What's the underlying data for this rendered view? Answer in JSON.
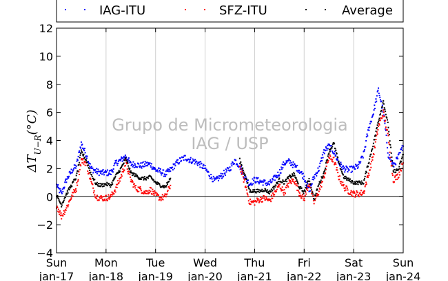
{
  "chart_data": {
    "type": "scatter",
    "ylabel": "ΔT",
    "ylabel_sub": "U−R",
    "ylabel_unit": "(°C)",
    "ylim": [
      -4,
      12
    ],
    "yticks": [
      -4,
      -2,
      0,
      2,
      4,
      6,
      8,
      10,
      12
    ],
    "ytick_labels": [
      "−4",
      "−2",
      "0",
      "2",
      "4",
      "6",
      "8",
      "10",
      "12"
    ],
    "xlim": [
      0,
      7
    ],
    "xticks": [
      0,
      1,
      2,
      3,
      4,
      5,
      6,
      7
    ],
    "xtick_labels_top": [
      "Sun",
      "Mon",
      "Tue",
      "Wed",
      "Thu",
      "Fri",
      "Sat",
      "Sun"
    ],
    "xtick_labels_bottom": [
      "jan-17",
      "jan-18",
      "jan-19",
      "jan-20",
      "jan-21",
      "jan-22",
      "jan-23",
      "jan-24"
    ],
    "grid_x": true,
    "zero_line": true,
    "legend_position": "top",
    "watermark": [
      "Grupo de Micrometeorologia",
      "IAG / USP"
    ],
    "series": [
      {
        "name": "IAG-ITU",
        "color": "#0000ff",
        "x": [
          0.0,
          0.1,
          0.2,
          0.3,
          0.4,
          0.5,
          0.6,
          0.7,
          0.8,
          0.9,
          1.0,
          1.1,
          1.2,
          1.3,
          1.4,
          1.5,
          1.6,
          1.7,
          1.8,
          1.9,
          2.0,
          2.1,
          2.2,
          2.3,
          2.4,
          2.5,
          2.6,
          2.7,
          2.8,
          2.9,
          3.0,
          3.1,
          3.2,
          3.3,
          3.4,
          3.5,
          3.6,
          3.7,
          3.8,
          3.9,
          4.0,
          4.1,
          4.2,
          4.3,
          4.4,
          4.5,
          4.6,
          4.7,
          4.8,
          4.9,
          5.0,
          5.1,
          5.2,
          5.3,
          5.4,
          5.5,
          5.6,
          5.7,
          5.8,
          5.9,
          6.0,
          6.1,
          6.2,
          6.3,
          6.4,
          6.5,
          6.6,
          6.7,
          6.8,
          6.9,
          7.0
        ],
        "y": [
          0.8,
          0.2,
          1.2,
          1.8,
          2.2,
          3.8,
          3.0,
          2.0,
          1.8,
          1.7,
          1.7,
          1.7,
          2.4,
          2.6,
          2.9,
          2.3,
          2.3,
          2.2,
          2.3,
          2.3,
          1.9,
          1.8,
          1.6,
          1.9,
          2.3,
          2.6,
          2.8,
          2.6,
          2.5,
          2.3,
          2.0,
          1.5,
          1.1,
          1.4,
          1.7,
          2.0,
          2.6,
          2.2,
          1.4,
          0.9,
          1.2,
          1.1,
          1.0,
          0.9,
          1.3,
          1.7,
          2.4,
          2.5,
          2.2,
          1.9,
          1.4,
          0.4,
          1.4,
          2.0,
          3.2,
          3.6,
          3.2,
          2.4,
          2.0,
          1.9,
          2.0,
          2.2,
          3.0,
          4.8,
          6.0,
          7.6,
          6.0,
          3.0,
          2.2,
          2.8,
          3.6
        ]
      },
      {
        "name": "SFZ-ITU",
        "color": "#ff0000",
        "x": [
          0.0,
          0.1,
          0.2,
          0.3,
          0.4,
          0.5,
          0.6,
          0.7,
          0.8,
          0.9,
          1.0,
          1.1,
          1.2,
          1.3,
          1.4,
          1.5,
          1.6,
          1.7,
          1.8,
          1.9,
          2.0,
          2.1,
          2.2,
          2.3,
          3.7,
          3.8,
          3.9,
          4.0,
          4.1,
          4.2,
          4.3,
          4.4,
          4.5,
          4.6,
          4.7,
          4.8,
          4.9,
          5.0,
          5.1,
          5.2,
          5.3,
          5.4,
          5.5,
          5.6,
          5.7,
          5.8,
          5.9,
          6.0,
          6.1,
          6.2,
          6.3,
          6.4,
          6.5,
          6.6,
          6.7,
          6.8,
          6.9,
          7.0
        ],
        "y": [
          -0.6,
          -1.4,
          -0.8,
          0.0,
          0.6,
          2.6,
          2.4,
          1.0,
          0.0,
          -0.1,
          -0.1,
          0.0,
          0.6,
          1.4,
          2.4,
          1.2,
          0.6,
          0.5,
          0.3,
          0.5,
          0.1,
          -0.1,
          0.0,
          0.8,
          2.2,
          1.0,
          -0.4,
          -0.4,
          -0.2,
          -0.1,
          -0.3,
          0.2,
          0.8,
          0.3,
          1.0,
          1.2,
          0.3,
          -0.2,
          1.0,
          -0.4,
          0.4,
          1.4,
          2.8,
          2.6,
          1.4,
          0.7,
          0.4,
          0.2,
          0.2,
          0.3,
          1.6,
          3.0,
          5.0,
          6.0,
          4.2,
          1.2,
          1.5,
          2.4
        ]
      },
      {
        "name": "Average",
        "color": "#000000",
        "x": [
          0.0,
          0.1,
          0.2,
          0.3,
          0.4,
          0.5,
          0.6,
          0.7,
          0.8,
          0.9,
          1.0,
          1.1,
          1.2,
          1.3,
          1.4,
          1.5,
          1.6,
          1.7,
          1.8,
          1.9,
          2.0,
          2.1,
          2.2,
          2.3,
          3.7,
          3.8,
          3.9,
          4.0,
          4.1,
          4.2,
          4.3,
          4.4,
          4.5,
          4.6,
          4.7,
          4.8,
          4.9,
          5.0,
          5.1,
          5.2,
          5.3,
          5.4,
          5.5,
          5.6,
          5.7,
          5.8,
          5.9,
          6.0,
          6.1,
          6.2,
          6.3,
          6.4,
          6.5,
          6.6,
          6.7,
          6.8,
          6.9,
          7.0
        ],
        "y": [
          0.1,
          -0.6,
          0.2,
          0.8,
          1.4,
          3.2,
          2.6,
          1.6,
          0.9,
          0.8,
          0.9,
          0.8,
          1.5,
          2.0,
          2.7,
          1.7,
          1.5,
          1.3,
          1.3,
          1.4,
          1.0,
          0.8,
          0.7,
          1.3,
          2.6,
          1.6,
          0.4,
          0.4,
          0.4,
          0.5,
          0.3,
          0.7,
          1.2,
          1.0,
          1.4,
          1.6,
          0.7,
          0.3,
          1.3,
          -0.2,
          0.9,
          1.7,
          3.2,
          3.8,
          2.4,
          1.4,
          1.2,
          1.0,
          1.0,
          1.0,
          2.4,
          3.8,
          5.4,
          6.8,
          5.0,
          1.8,
          1.9,
          3.0
        ]
      }
    ]
  }
}
